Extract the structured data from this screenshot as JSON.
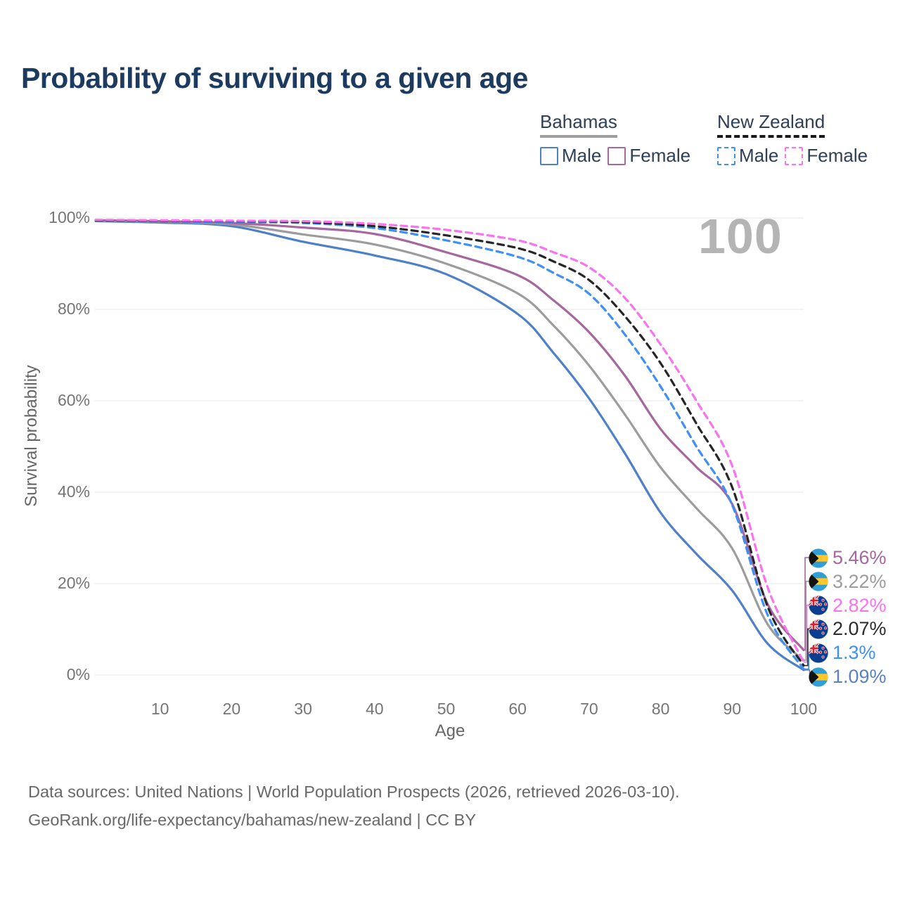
{
  "title": "Probability of surviving to a given age",
  "watermark": "100",
  "legend": {
    "groups": [
      {
        "label": "Bahamas",
        "underline_style": "solid",
        "items": [
          {
            "label": "Male",
            "color": "#4d80c9",
            "dashed": false
          },
          {
            "label": "Female",
            "color": "#a5679e",
            "dashed": false
          }
        ]
      },
      {
        "label": "New Zealand",
        "underline_style": "dashed",
        "items": [
          {
            "label": "Male",
            "color": "#3f90f5",
            "dashed": true
          },
          {
            "label": "Female",
            "color": "#f973ef",
            "dashed": true
          }
        ]
      }
    ]
  },
  "axes": {
    "x_title": "Age",
    "y_title": "Survival probability",
    "x_ticks": [
      {
        "value": 10,
        "label": "10"
      },
      {
        "value": 20,
        "label": "20"
      },
      {
        "value": 30,
        "label": "30"
      },
      {
        "value": 40,
        "label": "40"
      },
      {
        "value": 50,
        "label": "50"
      },
      {
        "value": 60,
        "label": "60"
      },
      {
        "value": 70,
        "label": "70"
      },
      {
        "value": 80,
        "label": "80"
      },
      {
        "value": 90,
        "label": "90"
      },
      {
        "value": 100,
        "label": "100"
      }
    ],
    "y_ticks": [
      {
        "value": 0,
        "label": "0%"
      },
      {
        "value": 20,
        "label": "20%"
      },
      {
        "value": 40,
        "label": "40%"
      },
      {
        "value": 60,
        "label": "60%"
      },
      {
        "value": 80,
        "label": "80%"
      },
      {
        "value": 100,
        "label": "100%"
      }
    ]
  },
  "chart_data": {
    "type": "line",
    "title": "Probability of surviving to a given age",
    "xlabel": "Age",
    "ylabel": "Survival probability",
    "xlim": [
      0,
      100
    ],
    "ylim": [
      0,
      100
    ],
    "grid": "horizontal",
    "legend_position": "top-right",
    "x": [
      1,
      10,
      20,
      30,
      40,
      50,
      60,
      65,
      70,
      75,
      80,
      85,
      90,
      95,
      100
    ],
    "series": [
      {
        "key": "bahamas-male",
        "name": "Bahamas Male",
        "country": "bahamas",
        "color": "#4d80c9",
        "dashed": false,
        "values": [
          99.3,
          99.0,
          98.2,
          94.8,
          91.8,
          87.7,
          79.0,
          70.5,
          60.5,
          48.5,
          35.5,
          26.5,
          18.5,
          6.8,
          1.09
        ]
      },
      {
        "key": "bahamas",
        "name": "Bahamas",
        "country": "bahamas",
        "color": "#9c9c9c",
        "dashed": false,
        "values": [
          99.4,
          99.2,
          98.6,
          96.4,
          94.2,
          90.0,
          83.5,
          76.5,
          67.7,
          57.0,
          45.4,
          36.5,
          27.7,
          11.0,
          3.22
        ]
      },
      {
        "key": "bahamas-female",
        "name": "Bahamas Female",
        "country": "bahamas",
        "color": "#a5679e",
        "dashed": false,
        "values": [
          99.5,
          99.3,
          98.9,
          97.9,
          96.5,
          92.5,
          87.5,
          82.0,
          75.0,
          65.5,
          53.8,
          45.5,
          37.4,
          15.4,
          5.46
        ]
      },
      {
        "key": "new-zealand-male",
        "name": "New Zealand Male",
        "country": "new-zealand",
        "color": "#3f90f5",
        "dashed": true,
        "values": [
          99.4,
          99.3,
          99.1,
          98.9,
          97.8,
          95.1,
          91.5,
          88.0,
          83.4,
          74.5,
          63.1,
          50.0,
          37.2,
          13.0,
          1.3
        ]
      },
      {
        "key": "new-zealand",
        "name": "New Zealand",
        "country": "new-zealand",
        "color": "#262626",
        "dashed": true,
        "values": [
          99.5,
          99.4,
          99.3,
          99.1,
          98.2,
          96.2,
          93.4,
          90.5,
          86.4,
          78.5,
          68.2,
          55.0,
          41.1,
          14.8,
          2.07
        ]
      },
      {
        "key": "new-zealand-female",
        "name": "New Zealand Female",
        "country": "new-zealand",
        "color": "#f973ef",
        "dashed": true,
        "values": [
          99.6,
          99.5,
          99.4,
          99.3,
          98.7,
          97.4,
          95.1,
          92.5,
          89.2,
          82.5,
          72.3,
          60.0,
          45.8,
          19.0,
          2.82
        ]
      }
    ],
    "end_labels": [
      {
        "series": "bahamas-female",
        "country": "bahamas",
        "text": "5.46%",
        "value": 5.46,
        "color": "#a5679e"
      },
      {
        "series": "bahamas",
        "country": "bahamas",
        "text": "3.22%",
        "value": 3.22,
        "color": "#9c9c9c"
      },
      {
        "series": "new-zealand-female",
        "country": "new-zealand",
        "text": "2.82%",
        "value": 2.82,
        "color": "#f973ef"
      },
      {
        "series": "new-zealand",
        "country": "new-zealand",
        "text": "2.07%",
        "value": 2.07,
        "color": "#2b2b2b"
      },
      {
        "series": "new-zealand-male",
        "country": "new-zealand",
        "text": "1.3%",
        "value": 1.3,
        "color": "#3f90f5"
      },
      {
        "series": "bahamas-male",
        "country": "bahamas",
        "text": "1.09%",
        "value": 1.09,
        "color": "#5b80c4"
      }
    ]
  },
  "footer": {
    "line1": "Data sources: United Nations | World Population Prospects (2026, retrieved 2026-03-10).",
    "line2": "GeoRank.org/life-expectancy/bahamas/new-zealand | CC BY"
  }
}
